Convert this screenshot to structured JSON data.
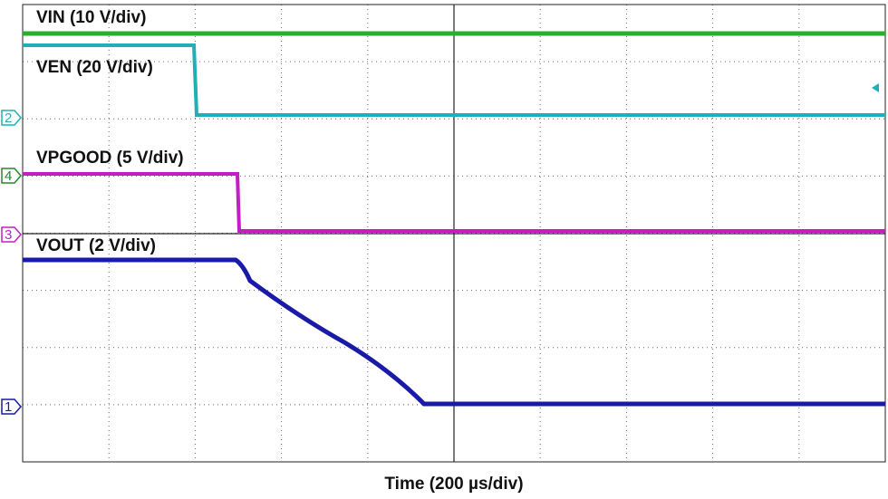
{
  "traces": {
    "vin": "VIN (10 V/div)",
    "ven": "VEN (20 V/div)",
    "vpgood": "VPGOOD (5 V/div)",
    "vout": "VOUT (2 V/div)"
  },
  "markers": {
    "ch1": "1",
    "ch2": "2",
    "ch3": "3",
    "ch4": "4"
  },
  "x_axis_label": "Time (200 µs/div)"
}
